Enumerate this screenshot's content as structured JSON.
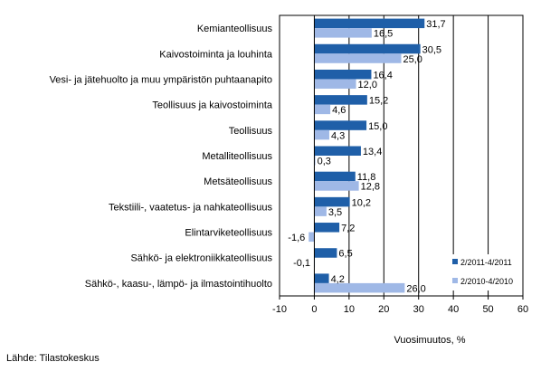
{
  "chart_data": {
    "type": "bar",
    "orientation": "horizontal",
    "categories": [
      "Kemianteollisuus",
      "Kaivostoiminta ja louhinta",
      "Vesi- ja jätehuolto ja muu ympäristön puhtaanapito",
      "Teollisuus ja kaivostoiminta",
      "Teollisuus",
      "Metalliteollisuus",
      "Metsäteollisuus",
      "Tekstiili-, vaatetus- ja nahkateollisuus",
      "Elintarviketeollisuus",
      "Sähkö- ja elektroniikkateollisuus",
      "Sähkö-, kaasu-, lämpö- ja ilmastointihuolto"
    ],
    "series": [
      {
        "name": "2/2011-4/2011",
        "color": "#1f5fa8",
        "values": [
          31.7,
          30.5,
          16.4,
          15.2,
          15.0,
          13.4,
          11.8,
          10.2,
          7.2,
          6.5,
          4.2
        ],
        "labels": [
          "31,7",
          "30,5",
          "16,4",
          "15,2",
          "15,0",
          "13,4",
          "11,8",
          "10,2",
          "7,2",
          "6,5",
          "4,2"
        ]
      },
      {
        "name": "2/2010-4/2010",
        "color": "#9fb8e6",
        "values": [
          16.5,
          25.0,
          12.0,
          4.6,
          4.3,
          0.3,
          12.8,
          3.5,
          -1.6,
          -0.1,
          26.0
        ],
        "labels": [
          "16,5",
          "25,0",
          "12,0",
          "4,6",
          "4,3",
          "0,3",
          "12,8",
          "3,5",
          "-1,6",
          "-0,1",
          "26,0"
        ]
      }
    ],
    "xlim": [
      -10,
      60
    ],
    "xticks": [
      -10,
      0,
      10,
      20,
      30,
      40,
      50,
      60
    ],
    "xlabel": "Vuosimuutos, %",
    "grid": "vertical gridlines",
    "legend": "bottom-right"
  },
  "source": "Lähde: Tilastokeskus"
}
